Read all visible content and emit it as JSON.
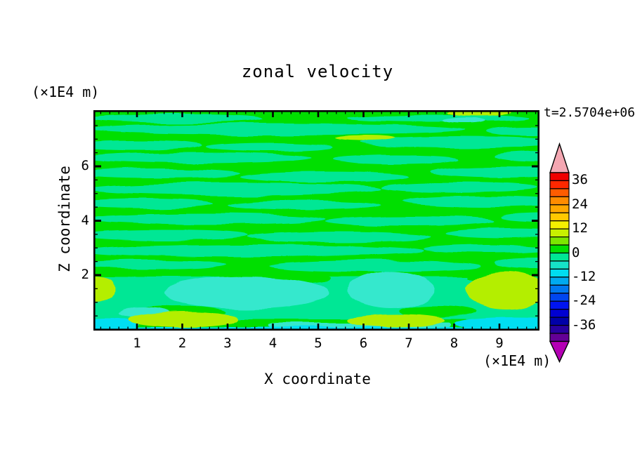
{
  "chart_data": {
    "type": "filled_contour",
    "title": "zonal velocity",
    "time_annotation": "t=2.5704e+06",
    "xlabel": "X coordinate",
    "x_units": "(×1E4 m)",
    "x_ticks": [
      1,
      2,
      3,
      4,
      5,
      6,
      7,
      8,
      9
    ],
    "x_minor_step": 0.2,
    "x_range_approx": [
      0,
      9.85
    ],
    "ylabel": "Z coordinate",
    "y_units": "(×1E4 m)",
    "y_ticks": [
      2,
      4,
      6
    ],
    "y_minor_step": 0.5,
    "y_range_approx": [
      0,
      8.05
    ],
    "grid": false,
    "legend_position": "right-colorbar",
    "contour_level_step": 4,
    "field_summary": "Zonal velocity field mostly between -8 and +12: alternating horizontal streaks of 0..4 (green) and -4..0 (spring green); turquoise -8..-4 lenses near the bottom at x≈2-3.5 and x≈5.5-6.5; yellow-green 8..12 patches at the bottom-left edge, along the bottom near x≈1.5-3 and x≈5.5-7, a large one at x≈8.5-9.8 z≈1, and thin streaks at the very top near x≈5.5 and x≈8; thin cyan -12..-8 strip along the bottom edge.",
    "palette": {
      "g": "#00DF00",
      "sg": "#00E795",
      "tq": "#35E8CD",
      "cy": "#00DFF2",
      "yg": "#B4EE00"
    },
    "field_shapes": [
      [
        "e",
        115,
        12,
        125,
        6,
        "sg"
      ],
      [
        "e",
        490,
        11,
        130,
        5,
        "sg"
      ],
      [
        "e",
        260,
        27,
        270,
        8,
        "sg"
      ],
      [
        "e",
        620,
        30,
        60,
        7,
        "sg"
      ],
      [
        "e",
        60,
        50,
        95,
        7,
        "sg"
      ],
      [
        "e",
        250,
        52,
        90,
        6,
        "sg"
      ],
      [
        "e",
        520,
        46,
        140,
        8,
        "sg"
      ],
      [
        "e",
        150,
        68,
        160,
        8,
        "sg"
      ],
      [
        "e",
        430,
        70,
        90,
        6,
        "sg"
      ],
      [
        "e",
        640,
        66,
        70,
        7,
        "sg"
      ],
      [
        "e",
        90,
        90,
        120,
        7,
        "sg"
      ],
      [
        "e",
        330,
        95,
        120,
        7,
        "sg"
      ],
      [
        "e",
        580,
        88,
        100,
        8,
        "sg"
      ],
      [
        "e",
        200,
        112,
        210,
        9,
        "sg"
      ],
      [
        "e",
        520,
        110,
        110,
        7,
        "sg"
      ],
      [
        "e",
        70,
        133,
        100,
        7,
        "sg"
      ],
      [
        "e",
        300,
        135,
        110,
        7,
        "sg"
      ],
      [
        "e",
        560,
        130,
        120,
        8,
        "sg"
      ],
      [
        "e",
        160,
        155,
        170,
        8,
        "sg"
      ],
      [
        "e",
        450,
        158,
        120,
        7,
        "sg"
      ],
      [
        "e",
        640,
        152,
        60,
        6,
        "sg"
      ],
      [
        "e",
        100,
        178,
        120,
        7,
        "sg"
      ],
      [
        "e",
        350,
        180,
        130,
        8,
        "sg"
      ],
      [
        "e",
        590,
        175,
        90,
        7,
        "sg"
      ],
      [
        "e",
        230,
        200,
        240,
        9,
        "sg"
      ],
      [
        "e",
        560,
        198,
        90,
        6,
        "sg"
      ],
      [
        "e",
        80,
        220,
        110,
        7,
        "sg"
      ],
      [
        "e",
        400,
        222,
        150,
        8,
        "sg"
      ],
      [
        "e",
        630,
        218,
        60,
        7,
        "sg"
      ],
      [
        "r",
        -25,
        238,
        685,
        60,
        "sg"
      ],
      [
        "e",
        260,
        240,
        80,
        7,
        "g"
      ],
      [
        "e",
        580,
        240,
        50,
        6,
        "g"
      ],
      [
        "e",
        120,
        288,
        70,
        9,
        "g"
      ],
      [
        "e",
        490,
        287,
        55,
        9,
        "g"
      ],
      [
        "e",
        217,
        260,
        118,
        23,
        "tq"
      ],
      [
        "e",
        424,
        256,
        62,
        26,
        "tq"
      ],
      [
        "e",
        527,
        15,
        30,
        4,
        "tq"
      ],
      [
        "e",
        72,
        288,
        35,
        7,
        "tq"
      ],
      [
        "r",
        250,
        303,
        260,
        6,
        "tq"
      ],
      [
        "r",
        -25,
        309,
        685,
        10,
        "cy"
      ],
      [
        "e",
        20,
        305,
        45,
        9,
        "cy"
      ],
      [
        "e",
        600,
        304,
        85,
        9,
        "cy"
      ],
      [
        "e",
        2,
        255,
        30,
        18,
        "yg"
      ],
      [
        "e",
        128,
        298,
        78,
        11,
        "yg"
      ],
      [
        "e",
        430,
        300,
        70,
        9,
        "yg"
      ],
      [
        "e",
        588,
        257,
        58,
        27,
        "yg"
      ],
      [
        "e",
        388,
        40,
        42,
        4,
        "yg"
      ],
      [
        "e",
        548,
        3,
        45,
        5,
        "yg"
      ]
    ]
  },
  "colorbar": {
    "tick_labels": [
      "36",
      "24",
      "12",
      "0",
      "-12",
      "-24",
      "-36"
    ],
    "over_arrow_color": "#F4A7B2",
    "under_arrow_color": "#B400B4",
    "bands_top_to_bottom": [
      "#F00000",
      "#FF2800",
      "#FF5C00",
      "#FF8C00",
      "#FFA800",
      "#FFC800",
      "#F4F000",
      "#C8F000",
      "#7CE600",
      "#00DF00",
      "#00E795",
      "#16E2C8",
      "#00DCF0",
      "#00AAF0",
      "#0078F0",
      "#0046F0",
      "#0014F0",
      "#0000D2",
      "#0000A8",
      "#2800A0",
      "#640096"
    ]
  }
}
